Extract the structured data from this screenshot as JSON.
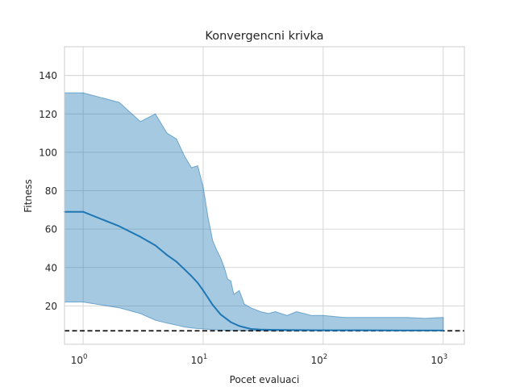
{
  "chart_data": {
    "type": "line",
    "title": "Konvergencni krivka",
    "xlabel": "Pocet evaluaci",
    "ylabel": "Fitness",
    "xscale": "log",
    "xlim": [
      0.7,
      1500
    ],
    "ylim": [
      0,
      155
    ],
    "x_ticks": [
      {
        "base": "10",
        "exp": "0",
        "value": 1
      },
      {
        "base": "10",
        "exp": "1",
        "value": 10
      },
      {
        "base": "10",
        "exp": "2",
        "value": 100
      },
      {
        "base": "10",
        "exp": "3",
        "value": 1000
      }
    ],
    "y_ticks": [
      "20",
      "40",
      "60",
      "80",
      "100",
      "120",
      "140"
    ],
    "grid": true,
    "series": [
      {
        "role": "mean",
        "color": "#1f77b4",
        "x": [
          0.7,
          1,
          2,
          3,
          4,
          5,
          6,
          7,
          8,
          9,
          10,
          12,
          14,
          17,
          20,
          25,
          30,
          40,
          60,
          100,
          200,
          500,
          1000
        ],
        "y": [
          69,
          69,
          61.5,
          56,
          51.5,
          46.5,
          43,
          39,
          35.5,
          32,
          28,
          20.5,
          15.5,
          11.5,
          9.5,
          8,
          7.7,
          7.5,
          7.4,
          7.3,
          7.3,
          7.2,
          7.2
        ]
      },
      {
        "role": "band",
        "color": "#1f77b4",
        "x": [
          0.7,
          1,
          2,
          3,
          4,
          5,
          6,
          7,
          8,
          9,
          10,
          11,
          12,
          13,
          14,
          15,
          16,
          17,
          18,
          20,
          22,
          25,
          30,
          35,
          40,
          50,
          60,
          80,
          100,
          150,
          200,
          300,
          500,
          700,
          1000
        ],
        "upper": [
          131,
          131,
          126,
          116,
          120,
          110,
          107,
          98,
          92,
          93,
          82,
          66,
          54,
          49,
          45,
          40,
          34,
          33,
          26,
          28,
          21,
          19,
          17,
          16,
          17,
          15,
          17,
          15,
          15,
          14,
          14,
          14,
          14,
          13.5,
          14
        ],
        "lower": [
          22,
          22,
          19,
          16,
          12.5,
          11,
          10,
          9,
          8.5,
          8.2,
          8,
          7.8,
          7.6,
          7.5,
          7.4,
          7.3,
          7.3,
          7.2,
          7.2,
          7.2,
          7.1,
          7.1,
          7.1,
          7,
          7,
          7,
          7,
          7,
          7,
          7,
          7,
          7,
          7,
          7,
          7
        ]
      },
      {
        "role": "reference",
        "style": "dashed",
        "color": "#000000",
        "y": 7
      }
    ]
  }
}
